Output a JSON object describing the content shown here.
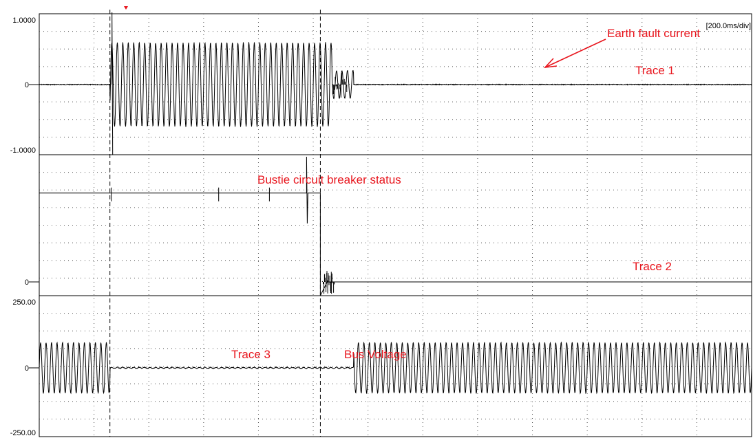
{
  "chart_data": {
    "type": "line",
    "timebase": "[200.0ms/div]",
    "x_divisions": 13,
    "colors": {
      "trace": "#000000",
      "annotation": "#e8141c",
      "grid": "#555555"
    },
    "cursors_ms": [
      258,
      1026
    ],
    "trigger_marker": "red-triangle",
    "panels": [
      {
        "label": "Trace 1",
        "ticks": {
          "top": "1.0000",
          "zero": "0",
          "bottom": "-1.0000"
        },
        "ylim": [
          -1,
          1
        ],
        "annotation": "Earth fault current",
        "segments": [
          {
            "t_start_ms": 0,
            "t_end_ms": 258,
            "amplitude": 0.0
          },
          {
            "t_start_ms": 258,
            "t_end_ms": 1068,
            "amplitude": 0.63
          },
          {
            "t_start_ms": 1068,
            "t_end_ms": 1148,
            "amplitude": 0.21
          },
          {
            "t_start_ms": 1148,
            "t_end_ms": 2600,
            "amplitude": 0.0
          }
        ]
      },
      {
        "label": "Trace 2",
        "ticks": {
          "zero": "0"
        },
        "annotation": "Bustie circuit breaker status",
        "high_level": 0.68,
        "drop_ms": 1026
      },
      {
        "label": "Trace 3",
        "ticks": {
          "top": "250.00",
          "zero": "0",
          "bottom": "-250.00"
        },
        "ylim": [
          -250,
          250
        ],
        "annotation": "Bus Voltage",
        "segments": [
          {
            "t_start_ms": 0,
            "t_end_ms": 258,
            "amplitude": 95
          },
          {
            "t_start_ms": 258,
            "t_end_ms": 1148,
            "amplitude": 2
          },
          {
            "t_start_ms": 1148,
            "t_end_ms": 2600,
            "amplitude": 95
          }
        ]
      }
    ]
  }
}
